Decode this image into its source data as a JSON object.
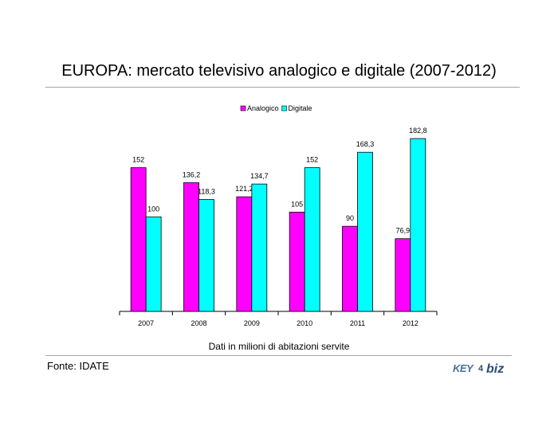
{
  "slide": {
    "title": "EUROPA: mercato televisivo analogico e digitale (2007-2012)",
    "subtitle": "Dati in milioni di abitazioni servite",
    "source": "Fonte: IDATE",
    "logo": {
      "text_a": "KEY",
      "text_b": "biz",
      "color_a": "#4a6fa0",
      "color_b": "#2a4d7a"
    }
  },
  "chart_data": {
    "type": "bar",
    "categories": [
      "2007",
      "2008",
      "2009",
      "2010",
      "2011",
      "2012"
    ],
    "series": [
      {
        "name": "Analogico",
        "color": "#ff00ff",
        "values": [
          152,
          136.2,
          121.2,
          105,
          90,
          76.9
        ],
        "labels": [
          "152",
          "136,2",
          "121,2",
          "105",
          "90",
          "76,9"
        ]
      },
      {
        "name": "Digitale",
        "color": "#00ffff",
        "values": [
          100,
          118.3,
          134.7,
          152,
          168.3,
          182.8
        ],
        "labels": [
          "100",
          "118,3",
          "134,7",
          "152",
          "168,3",
          "182,8"
        ]
      }
    ],
    "ylim": [
      0,
      182.8
    ],
    "legend": "top-center",
    "grid": false
  }
}
